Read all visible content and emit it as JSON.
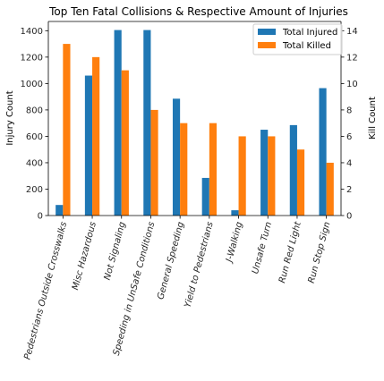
{
  "chart_data": {
    "type": "bar",
    "title": "Top Ten Fatal Collisions & Respective Amount of Injuries",
    "categories": [
      "Pedestrians Outside Crosswalks",
      "Misc Hazardous",
      "Not Signaling",
      "Speeding in UnSafe Conditions",
      "General Speeding",
      "Yield to Pedestrians",
      "J-Walking",
      "Unsafe Turn",
      "Run Red Light",
      "Run Stop Sign"
    ],
    "series": [
      {
        "name": "Total Injured",
        "axis": "left",
        "color": "#1f77b4",
        "values": [
          80,
          1060,
          1405,
          1405,
          885,
          285,
          40,
          650,
          685,
          965
        ]
      },
      {
        "name": "Total Killed",
        "axis": "right",
        "color": "#ff7f0e",
        "values": [
          13,
          12,
          11,
          8,
          7,
          7,
          6,
          6,
          5,
          4
        ]
      }
    ],
    "ylabel": "Injury Count",
    "ylabel_right": "Kill Count",
    "ylim": [
      0,
      1470
    ],
    "ylim_right": [
      0,
      14.7
    ],
    "yticks": [
      0,
      200,
      400,
      600,
      800,
      1000,
      1200,
      1400
    ],
    "yticks_right": [
      0,
      2,
      4,
      6,
      8,
      10,
      12,
      14
    ],
    "legend_position": "top-right",
    "grid": false
  }
}
